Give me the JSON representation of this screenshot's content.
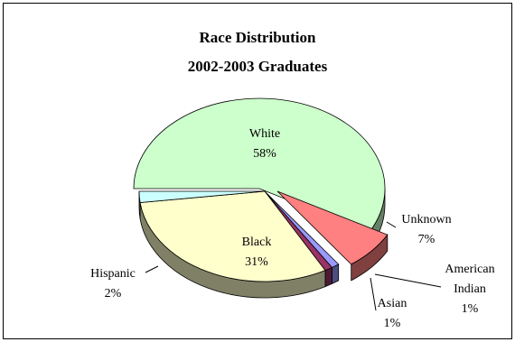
{
  "chart_data": {
    "type": "pie",
    "title": "Race Distribution",
    "subtitle": "2002-2003 Graduates",
    "slices": [
      {
        "label": "White",
        "value": 58,
        "display": "58%",
        "color": "#ccffcc"
      },
      {
        "label": "Unknown",
        "value": 7,
        "display": "7%",
        "color": "#ff8080"
      },
      {
        "label": "American Indian",
        "value": 1,
        "display": "1%",
        "color": "#9999ff"
      },
      {
        "label": "Asian",
        "value": 1,
        "display": "1%",
        "color": "#993366"
      },
      {
        "label": "Black",
        "value": 31,
        "display": "31%",
        "color": "#ffffcc"
      },
      {
        "label": "Hispanic",
        "value": 2,
        "display": "2%",
        "color": "#ccffff"
      }
    ],
    "style": "3d-exploded",
    "legend": "none"
  }
}
